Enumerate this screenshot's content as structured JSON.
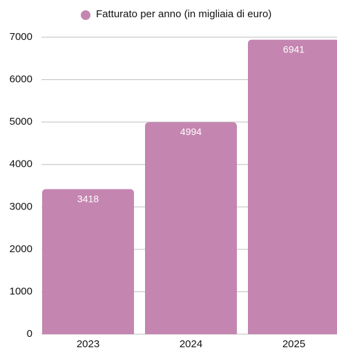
{
  "chart_data": {
    "type": "bar",
    "categories": [
      "2023",
      "2024",
      "2025"
    ],
    "series": [
      {
        "name": "Fatturato per anno (in migliaia di euro)",
        "color": "#c485b0",
        "values": [
          3418,
          4994,
          6941
        ]
      }
    ],
    "ylim": [
      0,
      7000
    ],
    "yticks": [
      0,
      1000,
      2000,
      3000,
      4000,
      5000,
      6000,
      7000
    ],
    "grid": true,
    "legend": "top",
    "data_labels": true
  }
}
